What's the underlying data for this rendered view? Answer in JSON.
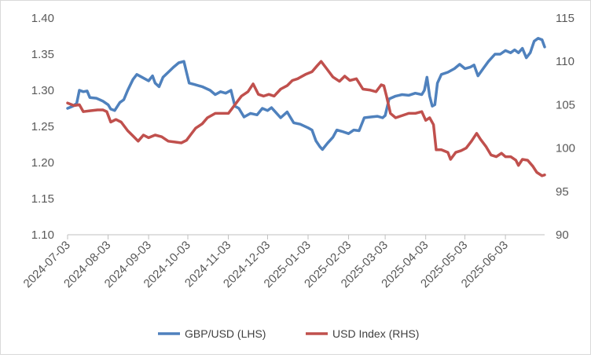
{
  "chart_data": {
    "type": "line",
    "x_ticks": [
      "2024-07-03",
      "2024-08-03",
      "2024-09-03",
      "2024-10-03",
      "2024-11-03",
      "2024-12-03",
      "2025-01-03",
      "2025-02-03",
      "2025-03-03",
      "2025-04-03",
      "2025-05-03",
      "2025-06-03"
    ],
    "left_axis": {
      "ylim": [
        1.1,
        1.4
      ],
      "ticks": [
        "1.10",
        "1.15",
        "1.20",
        "1.25",
        "1.30",
        "1.35",
        "1.40"
      ]
    },
    "right_axis": {
      "ylim": [
        90,
        115
      ],
      "ticks": [
        "90",
        "95",
        "100",
        "105",
        "110",
        "115"
      ]
    },
    "grid": false,
    "legend_position": "bottom",
    "series": [
      {
        "name": "GBP/USD (LHS)",
        "axis": "left",
        "color": "#4f81bd",
        "points": [
          [
            "2024-07-03",
            1.275
          ],
          [
            "2024-07-07",
            1.278
          ],
          [
            "2024-07-10",
            1.282
          ],
          [
            "2024-07-12",
            1.3
          ],
          [
            "2024-07-15",
            1.298
          ],
          [
            "2024-07-18",
            1.299
          ],
          [
            "2024-07-20",
            1.29
          ],
          [
            "2024-07-25",
            1.289
          ],
          [
            "2024-07-30",
            1.285
          ],
          [
            "2024-08-03",
            1.28
          ],
          [
            "2024-08-05",
            1.274
          ],
          [
            "2024-08-08",
            1.272
          ],
          [
            "2024-08-12",
            1.283
          ],
          [
            "2024-08-15",
            1.287
          ],
          [
            "2024-08-18",
            1.3
          ],
          [
            "2024-08-22",
            1.315
          ],
          [
            "2024-08-25",
            1.322
          ],
          [
            "2024-08-29",
            1.318
          ],
          [
            "2024-09-03",
            1.313
          ],
          [
            "2024-09-06",
            1.32
          ],
          [
            "2024-09-08",
            1.31
          ],
          [
            "2024-09-11",
            1.305
          ],
          [
            "2024-09-14",
            1.318
          ],
          [
            "2024-09-18",
            1.325
          ],
          [
            "2024-09-22",
            1.332
          ],
          [
            "2024-09-26",
            1.338
          ],
          [
            "2024-09-30",
            1.34
          ],
          [
            "2024-10-02",
            1.325
          ],
          [
            "2024-10-04",
            1.31
          ],
          [
            "2024-10-08",
            1.308
          ],
          [
            "2024-10-14",
            1.305
          ],
          [
            "2024-10-20",
            1.3
          ],
          [
            "2024-10-24",
            1.294
          ],
          [
            "2024-10-28",
            1.298
          ],
          [
            "2024-11-01",
            1.296
          ],
          [
            "2024-11-05",
            1.3
          ],
          [
            "2024-11-08",
            1.278
          ],
          [
            "2024-11-11",
            1.275
          ],
          [
            "2024-11-15",
            1.263
          ],
          [
            "2024-11-20",
            1.268
          ],
          [
            "2024-11-25",
            1.266
          ],
          [
            "2024-11-29",
            1.275
          ],
          [
            "2024-12-03",
            1.272
          ],
          [
            "2024-12-06",
            1.276
          ],
          [
            "2024-12-09",
            1.27
          ],
          [
            "2024-12-13",
            1.262
          ],
          [
            "2024-12-18",
            1.27
          ],
          [
            "2024-12-23",
            1.255
          ],
          [
            "2024-12-28",
            1.253
          ],
          [
            "2025-01-03",
            1.248
          ],
          [
            "2025-01-06",
            1.245
          ],
          [
            "2025-01-09",
            1.23
          ],
          [
            "2025-01-12",
            1.222
          ],
          [
            "2025-01-14",
            1.218
          ],
          [
            "2025-01-18",
            1.227
          ],
          [
            "2025-01-22",
            1.235
          ],
          [
            "2025-01-25",
            1.245
          ],
          [
            "2025-01-29",
            1.243
          ],
          [
            "2025-02-03",
            1.24
          ],
          [
            "2025-02-07",
            1.245
          ],
          [
            "2025-02-11",
            1.244
          ],
          [
            "2025-02-15",
            1.262
          ],
          [
            "2025-02-20",
            1.263
          ],
          [
            "2025-02-25",
            1.264
          ],
          [
            "2025-03-01",
            1.262
          ],
          [
            "2025-03-03",
            1.265
          ],
          [
            "2025-03-06",
            1.288
          ],
          [
            "2025-03-11",
            1.292
          ],
          [
            "2025-03-16",
            1.294
          ],
          [
            "2025-03-21",
            1.293
          ],
          [
            "2025-03-26",
            1.296
          ],
          [
            "2025-03-31",
            1.294
          ],
          [
            "2025-04-02",
            1.3
          ],
          [
            "2025-04-04",
            1.318
          ],
          [
            "2025-04-06",
            1.292
          ],
          [
            "2025-04-08",
            1.278
          ],
          [
            "2025-04-10",
            1.28
          ],
          [
            "2025-04-12",
            1.31
          ],
          [
            "2025-04-15",
            1.322
          ],
          [
            "2025-04-20",
            1.325
          ],
          [
            "2025-04-25",
            1.33
          ],
          [
            "2025-04-29",
            1.336
          ],
          [
            "2025-05-03",
            1.33
          ],
          [
            "2025-05-07",
            1.332
          ],
          [
            "2025-05-10",
            1.335
          ],
          [
            "2025-05-13",
            1.32
          ],
          [
            "2025-05-17",
            1.33
          ],
          [
            "2025-05-21",
            1.34
          ],
          [
            "2025-05-26",
            1.35
          ],
          [
            "2025-05-30",
            1.35
          ],
          [
            "2025-06-03",
            1.355
          ],
          [
            "2025-06-07",
            1.352
          ],
          [
            "2025-06-10",
            1.356
          ],
          [
            "2025-06-13",
            1.352
          ],
          [
            "2025-06-16",
            1.358
          ],
          [
            "2025-06-19",
            1.345
          ],
          [
            "2025-06-22",
            1.352
          ],
          [
            "2025-06-25",
            1.368
          ],
          [
            "2025-06-28",
            1.372
          ],
          [
            "2025-07-01",
            1.37
          ],
          [
            "2025-07-03",
            1.36
          ]
        ]
      },
      {
        "name": "USD Index (RHS)",
        "axis": "right",
        "color": "#c0504d",
        "points": [
          [
            "2024-07-03",
            105.2
          ],
          [
            "2024-07-08",
            104.9
          ],
          [
            "2024-07-12",
            105.0
          ],
          [
            "2024-07-15",
            104.2
          ],
          [
            "2024-07-20",
            104.3
          ],
          [
            "2024-07-26",
            104.4
          ],
          [
            "2024-07-30",
            104.4
          ],
          [
            "2024-08-02",
            104.2
          ],
          [
            "2024-08-05",
            103.0
          ],
          [
            "2024-08-09",
            103.3
          ],
          [
            "2024-08-13",
            103.0
          ],
          [
            "2024-08-18",
            102.0
          ],
          [
            "2024-08-22",
            101.4
          ],
          [
            "2024-08-26",
            100.8
          ],
          [
            "2024-08-30",
            101.5
          ],
          [
            "2024-09-03",
            101.2
          ],
          [
            "2024-09-08",
            101.5
          ],
          [
            "2024-09-13",
            101.3
          ],
          [
            "2024-09-18",
            100.8
          ],
          [
            "2024-09-23",
            100.7
          ],
          [
            "2024-09-28",
            100.6
          ],
          [
            "2024-10-02",
            100.9
          ],
          [
            "2024-10-05",
            101.5
          ],
          [
            "2024-10-09",
            102.3
          ],
          [
            "2024-10-14",
            102.8
          ],
          [
            "2024-10-18",
            103.5
          ],
          [
            "2024-10-24",
            104.0
          ],
          [
            "2024-10-30",
            104.0
          ],
          [
            "2024-11-03",
            104.0
          ],
          [
            "2024-11-08",
            105.0
          ],
          [
            "2024-11-13",
            106.0
          ],
          [
            "2024-11-18",
            106.5
          ],
          [
            "2024-11-22",
            107.4
          ],
          [
            "2024-11-26",
            106.2
          ],
          [
            "2024-11-30",
            106.0
          ],
          [
            "2024-12-04",
            106.2
          ],
          [
            "2024-12-08",
            106.0
          ],
          [
            "2024-12-13",
            106.8
          ],
          [
            "2024-12-18",
            107.2
          ],
          [
            "2024-12-22",
            107.8
          ],
          [
            "2024-12-26",
            108.0
          ],
          [
            "2025-01-01",
            108.5
          ],
          [
            "2025-01-06",
            108.8
          ],
          [
            "2025-01-10",
            109.5
          ],
          [
            "2025-01-13",
            110.0
          ],
          [
            "2025-01-17",
            109.2
          ],
          [
            "2025-01-22",
            108.2
          ],
          [
            "2025-01-27",
            107.7
          ],
          [
            "2025-01-31",
            108.3
          ],
          [
            "2025-02-04",
            107.8
          ],
          [
            "2025-02-09",
            108.0
          ],
          [
            "2025-02-14",
            106.8
          ],
          [
            "2025-02-19",
            106.7
          ],
          [
            "2025-02-24",
            106.5
          ],
          [
            "2025-02-28",
            107.3
          ],
          [
            "2025-03-02",
            107.2
          ],
          [
            "2025-03-04",
            106.0
          ],
          [
            "2025-03-07",
            104.0
          ],
          [
            "2025-03-11",
            103.5
          ],
          [
            "2025-03-17",
            103.8
          ],
          [
            "2025-03-21",
            104.0
          ],
          [
            "2025-03-26",
            104.0
          ],
          [
            "2025-03-31",
            104.2
          ],
          [
            "2025-04-03",
            103.2
          ],
          [
            "2025-04-06",
            103.5
          ],
          [
            "2025-04-09",
            102.7
          ],
          [
            "2025-04-11",
            99.8
          ],
          [
            "2025-04-15",
            99.8
          ],
          [
            "2025-04-20",
            99.5
          ],
          [
            "2025-04-22",
            98.7
          ],
          [
            "2025-04-26",
            99.5
          ],
          [
            "2025-04-30",
            99.7
          ],
          [
            "2025-05-04",
            100.0
          ],
          [
            "2025-05-08",
            100.8
          ],
          [
            "2025-05-12",
            101.7
          ],
          [
            "2025-05-15",
            101.0
          ],
          [
            "2025-05-19",
            100.2
          ],
          [
            "2025-05-23",
            99.2
          ],
          [
            "2025-05-27",
            99.0
          ],
          [
            "2025-05-31",
            99.4
          ],
          [
            "2025-06-03",
            99.0
          ],
          [
            "2025-06-07",
            99.0
          ],
          [
            "2025-06-11",
            98.6
          ],
          [
            "2025-06-13",
            98.0
          ],
          [
            "2025-06-16",
            98.7
          ],
          [
            "2025-06-20",
            98.6
          ],
          [
            "2025-06-24",
            97.9
          ],
          [
            "2025-06-27",
            97.2
          ],
          [
            "2025-07-01",
            96.8
          ],
          [
            "2025-07-03",
            96.9
          ]
        ]
      }
    ]
  }
}
